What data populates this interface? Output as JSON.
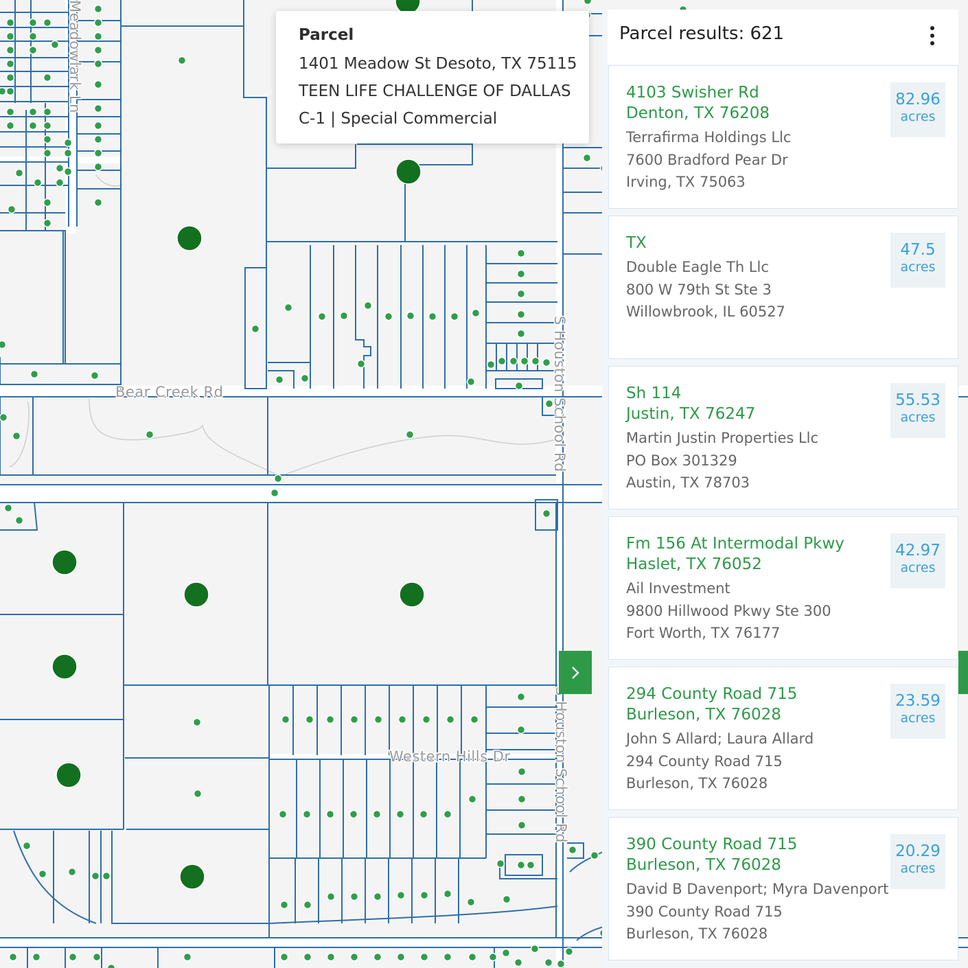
{
  "map": {
    "roads": [
      "Bear Creek Rd",
      "S Houston School Rd",
      "Western Hills Dr",
      "S Houston School Rd",
      "Meadowlark Ln"
    ],
    "colors": {
      "parcel_line": "#2f6fa8",
      "small_dot": "#2f9e4a",
      "large_dot": "#12701f",
      "road": "#ffffff"
    }
  },
  "popup": {
    "title": "Parcel",
    "address": "1401 Meadow St Desoto, TX 75115",
    "owner": "TEEN LIFE CHALLENGE OF DALLAS",
    "zoning": "C-1 | Special Commercial"
  },
  "panel": {
    "title": "Parcel results: 621",
    "menu_icon": "kebab-menu-icon",
    "collapse_icon": "chevron-right-icon",
    "unit_label": "acres",
    "results": [
      {
        "address_line1": "4103 Swisher Rd",
        "address_line2": "Denton, TX 76208",
        "owner": "Terrafirma Holdings Llc",
        "mail_line1": "7600 Bradford Pear Dr",
        "mail_line2": "Irving, TX 75063",
        "acres": "82.96"
      },
      {
        "address_line1": "TX",
        "address_line2": "",
        "owner": "Double Eagle Th Llc",
        "mail_line1": "800 W 79th St Ste 3",
        "mail_line2": "Willowbrook, IL 60527",
        "acres": "47.5"
      },
      {
        "address_line1": "Sh 114",
        "address_line2": "Justin, TX 76247",
        "owner": "Martin Justin Properties Llc",
        "mail_line1": "PO Box 301329",
        "mail_line2": "Austin, TX 78703",
        "acres": "55.53"
      },
      {
        "address_line1": "Fm 156 At Intermodal Pkwy",
        "address_line2": "Haslet, TX 76052",
        "owner": "Ail Investment",
        "mail_line1": "9800 Hillwood Pkwy Ste 300",
        "mail_line2": "Fort Worth, TX 76177",
        "acres": "42.97"
      },
      {
        "address_line1": "294 County Road 715",
        "address_line2": "Burleson, TX 76028",
        "owner": "John S Allard; Laura Allard",
        "mail_line1": "294 County Road 715",
        "mail_line2": "Burleson, TX 76028",
        "acres": "23.59"
      },
      {
        "address_line1": "390 County Road 715",
        "address_line2": "Burleson, TX 76028",
        "owner": "David B Davenport; Myra Davenport",
        "mail_line1": "390 County Road 715",
        "mail_line2": "Burleson, TX 76028",
        "acres": "20.29"
      }
    ]
  }
}
